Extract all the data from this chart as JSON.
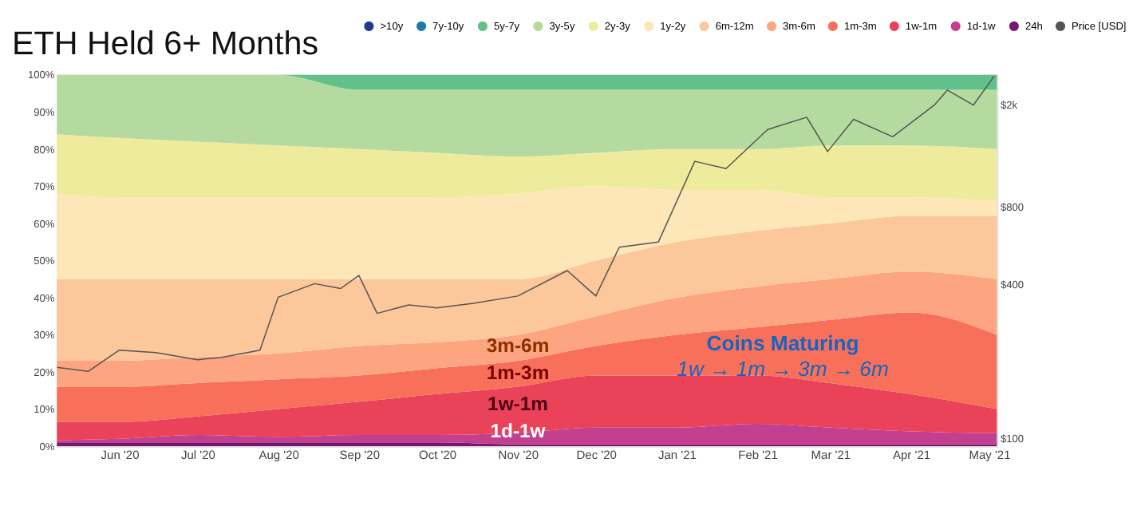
{
  "chart_data": {
    "type": "area",
    "title": "ETH Held 6+ Months",
    "stacked": true,
    "legend": "top",
    "grid": false,
    "x": [
      "2020-05-08",
      "2020-06-01",
      "2020-07-01",
      "2020-08-01",
      "2020-09-01",
      "2020-10-01",
      "2020-11-01",
      "2020-12-01",
      "2021-01-01",
      "2021-02-01",
      "2021-03-01",
      "2021-04-01",
      "2021-05-04"
    ],
    "xlim": [
      "2020-05-08",
      "2021-05-04"
    ],
    "xticks": [
      {
        "value": "2020-06-01",
        "label": "Jun '20"
      },
      {
        "value": "2020-07-01",
        "label": "Jul '20"
      },
      {
        "value": "2020-08-01",
        "label": "Aug '20"
      },
      {
        "value": "2020-09-01",
        "label": "Sep '20"
      },
      {
        "value": "2020-10-01",
        "label": "Oct '20"
      },
      {
        "value": "2020-11-01",
        "label": "Nov '20"
      },
      {
        "value": "2020-12-01",
        "label": "Dec '20"
      },
      {
        "value": "2021-01-01",
        "label": "Jan '21"
      },
      {
        "value": "2021-02-01",
        "label": "Feb '21"
      },
      {
        "value": "2021-03-01",
        "label": "Mar '21"
      },
      {
        "value": "2021-04-01",
        "label": "Apr '21"
      },
      {
        "value": "2021-05-01",
        "label": "May '21"
      }
    ],
    "ylim": [
      0,
      100
    ],
    "yticks": [
      {
        "value": 0,
        "label": "0%"
      },
      {
        "value": 10,
        "label": "10%"
      },
      {
        "value": 20,
        "label": "20%"
      },
      {
        "value": 30,
        "label": "30%"
      },
      {
        "value": 40,
        "label": "40%"
      },
      {
        "value": 50,
        "label": "50%"
      },
      {
        "value": 60,
        "label": "60%"
      },
      {
        "value": 70,
        "label": "70%"
      },
      {
        "value": 80,
        "label": "80%"
      },
      {
        "value": 90,
        "label": "90%"
      },
      {
        "value": 100,
        "label": "100%"
      }
    ],
    "log": "y2",
    "y2lim": [
      97,
      2730
    ],
    "y2ticks": [
      {
        "value": 100,
        "label": "$100"
      },
      {
        "value": 400,
        "label": "$400"
      },
      {
        "value": 800,
        "label": "$800"
      },
      {
        "value": 2000,
        "label": "$2k"
      }
    ],
    "series": [
      {
        "name": "24h",
        "color": "#7a1670",
        "values": [
          1,
          1,
          1,
          1,
          1,
          1,
          0.5,
          0.5,
          0.5,
          0.5,
          0.5,
          0.5,
          0.5
        ]
      },
      {
        "name": "1d-1w",
        "color": "#c2408f",
        "values": [
          0.6,
          1,
          2,
          1.5,
          2,
          2,
          3.1,
          4.5,
          4.5,
          5.5,
          4.5,
          3.5,
          3
        ]
      },
      {
        "name": "1w-1m",
        "color": "#ea4359",
        "values": [
          4.9,
          4.5,
          5,
          7.5,
          9,
          11,
          12.4,
          14,
          14,
          13,
          12,
          10,
          6.5
        ]
      },
      {
        "name": "1m-3m",
        "color": "#f8705a",
        "values": [
          9.5,
          9.5,
          9,
          8,
          7,
          7,
          7,
          8,
          11,
          13,
          17,
          22,
          20
        ]
      },
      {
        "name": "3m-6m",
        "color": "#fca580",
        "values": [
          7,
          7,
          7,
          7,
          8,
          7,
          7,
          8,
          10,
          11,
          11,
          11,
          15
        ]
      },
      {
        "name": "6m-12m",
        "color": "#fcc79a",
        "values": [
          22,
          22,
          21,
          20,
          18,
          17,
          15,
          15,
          15,
          15,
          15,
          15,
          17
        ]
      },
      {
        "name": "1y-2y",
        "color": "#fde6b8",
        "values": [
          23,
          22,
          22,
          22,
          22,
          22,
          23,
          20,
          14,
          11,
          7,
          5,
          4
        ]
      },
      {
        "name": "2y-3y",
        "color": "#eeec9c",
        "values": [
          16,
          16,
          15,
          14,
          13,
          12,
          10,
          9,
          11,
          11,
          14,
          14,
          14
        ]
      },
      {
        "name": "3y-5y",
        "color": "#b5daa0",
        "values": [
          16,
          17,
          18,
          19,
          16,
          17,
          18,
          17,
          16,
          16,
          15,
          15,
          16
        ]
      },
      {
        "name": "5y-7y",
        "color": "#62c08a",
        "values": [
          0,
          0,
          0,
          0,
          4,
          4,
          4,
          4,
          4,
          4,
          4,
          4,
          4
        ]
      },
      {
        "name": "7y-10y",
        "color": "#1f7aa8",
        "values": [
          null,
          null,
          null,
          null,
          null,
          null,
          null,
          null,
          null,
          null,
          null,
          null,
          null
        ]
      },
      {
        "name": ">10y",
        "color": "#1f3a93",
        "values": [
          null,
          null,
          null,
          null,
          null,
          null,
          null,
          null,
          null,
          null,
          null,
          null,
          null
        ]
      },
      {
        "name": "Price [USD]",
        "color": "#555555",
        "type": "line",
        "axis": "y2",
        "x": [
          "2020-05-08",
          "2020-05-20",
          "2020-06-01",
          "2020-06-15",
          "2020-07-01",
          "2020-07-10",
          "2020-07-25",
          "2020-08-01",
          "2020-08-15",
          "2020-08-25",
          "2020-09-01",
          "2020-09-08",
          "2020-09-20",
          "2020-10-01",
          "2020-10-15",
          "2020-11-01",
          "2020-11-20",
          "2020-12-01",
          "2020-12-10",
          "2020-12-25",
          "2021-01-08",
          "2021-01-20",
          "2021-02-05",
          "2021-02-20",
          "2021-02-28",
          "2021-03-10",
          "2021-03-25",
          "2021-04-10",
          "2021-04-15",
          "2021-04-25",
          "2021-05-03"
        ],
        "values": [
          197,
          190,
          230,
          225,
          211,
          215,
          230,
          370,
          418,
          400,
          450,
          320,
          345,
          336,
          350,
          374,
          470,
          374,
          580,
          607,
          1255,
          1175,
          1670,
          1865,
          1370,
          1830,
          1565,
          2080,
          2380,
          2080,
          2700
        ]
      }
    ],
    "annotations": [
      "3m-6m",
      "1m-3m",
      "1w-1m",
      "1d-1w",
      "Coins Maturing",
      "1w → 1m → 3m → 6m"
    ]
  }
}
